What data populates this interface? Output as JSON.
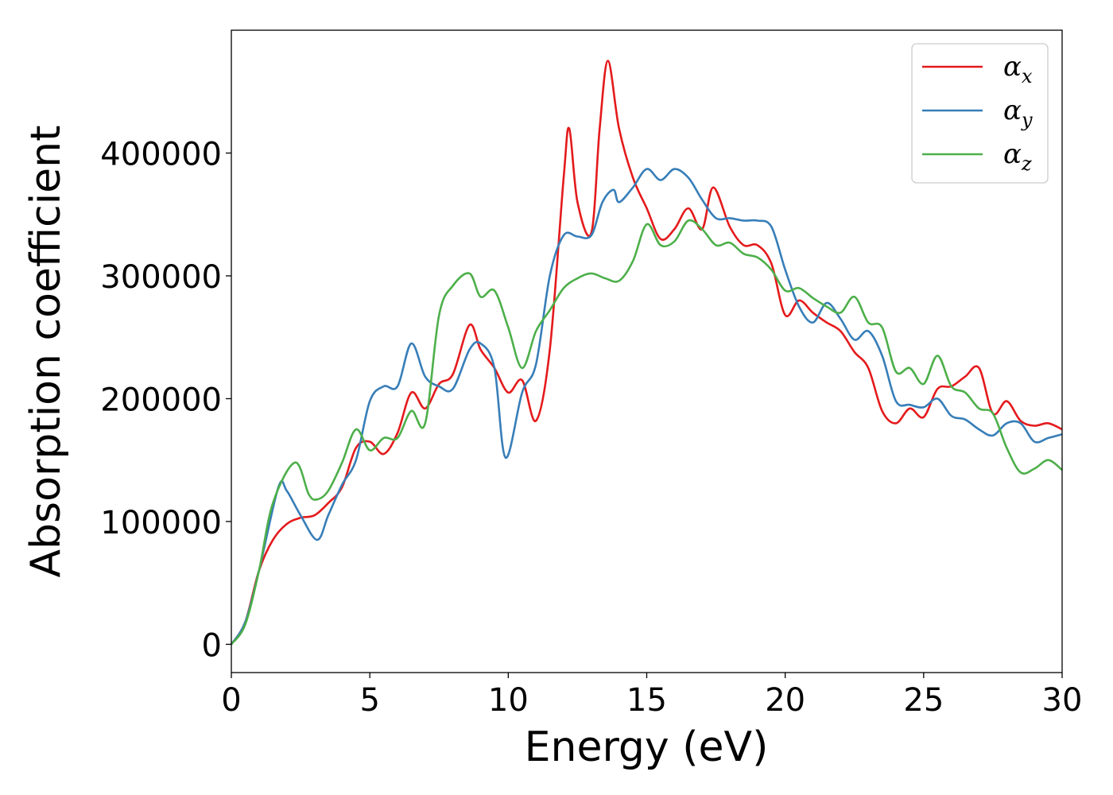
{
  "chart_data": {
    "type": "line",
    "xlabel": "Energy (eV)",
    "ylabel": "Absorption coefficient",
    "xlim": [
      0,
      30
    ],
    "ylim": [
      -23000,
      500000
    ],
    "xticks": [
      0,
      5,
      10,
      15,
      20,
      25,
      30
    ],
    "yticks": [
      0,
      100000,
      200000,
      300000,
      400000
    ],
    "legend_position": "top-right",
    "grid": false,
    "series": [
      {
        "name": "αx",
        "symbol": "α",
        "subscript": "x",
        "color": "#e41a1c",
        "x": [
          0,
          0.5,
          1.0,
          1.5,
          2.0,
          2.5,
          3.0,
          3.5,
          4.0,
          4.5,
          5.0,
          5.5,
          6.0,
          6.5,
          7.0,
          7.5,
          8.0,
          8.6,
          9.0,
          9.5,
          10.0,
          10.5,
          11.0,
          11.5,
          12.0,
          12.2,
          12.5,
          13.0,
          13.3,
          13.6,
          14.0,
          14.5,
          15.0,
          15.5,
          16.0,
          16.5,
          17.0,
          17.4,
          18.0,
          18.5,
          19.0,
          19.5,
          20.0,
          20.5,
          21.0,
          21.5,
          22.0,
          22.5,
          23.0,
          23.5,
          24.0,
          24.5,
          25.0,
          25.5,
          26.0,
          26.5,
          27.0,
          27.5,
          28.0,
          28.5,
          29.0,
          29.5,
          30.0
        ],
        "y": [
          0,
          18000,
          60000,
          85000,
          98000,
          103000,
          105000,
          115000,
          128000,
          160000,
          165000,
          155000,
          172000,
          205000,
          192000,
          212000,
          220000,
          260000,
          240000,
          225000,
          205000,
          215000,
          182000,
          240000,
          380000,
          420000,
          360000,
          335000,
          420000,
          475000,
          420000,
          380000,
          355000,
          330000,
          338000,
          355000,
          338000,
          372000,
          340000,
          325000,
          325000,
          310000,
          268000,
          280000,
          270000,
          262000,
          255000,
          238000,
          225000,
          190000,
          180000,
          192000,
          185000,
          208000,
          210000,
          218000,
          225000,
          188000,
          198000,
          182000,
          178000,
          180000,
          175000
        ]
      },
      {
        "name": "αy",
        "symbol": "α",
        "subscript": "y",
        "color": "#377eb8",
        "x": [
          0,
          0.5,
          1.0,
          1.7,
          2.0,
          2.5,
          3.1,
          3.5,
          4.0,
          4.5,
          5.0,
          5.5,
          6.0,
          6.5,
          7.0,
          7.5,
          8.0,
          8.6,
          9.0,
          9.5,
          9.9,
          10.5,
          11.0,
          11.5,
          12.0,
          12.5,
          13.0,
          13.4,
          13.8,
          14.0,
          14.5,
          15.0,
          15.5,
          16.0,
          16.5,
          17.0,
          17.5,
          18.0,
          18.5,
          19.0,
          19.5,
          20.0,
          20.5,
          21.0,
          21.5,
          22.0,
          22.5,
          23.0,
          23.5,
          24.0,
          24.5,
          25.0,
          25.5,
          26.0,
          26.5,
          27.0,
          27.5,
          28.0,
          28.5,
          29.0,
          29.5,
          30.0
        ],
        "y": [
          0,
          18000,
          60000,
          128000,
          125000,
          105000,
          85000,
          105000,
          130000,
          150000,
          198000,
          210000,
          210000,
          245000,
          218000,
          210000,
          208000,
          240000,
          245000,
          225000,
          152000,
          205000,
          228000,
          300000,
          333000,
          332000,
          333000,
          360000,
          370000,
          360000,
          372000,
          387000,
          378000,
          387000,
          380000,
          362000,
          347000,
          347000,
          345000,
          345000,
          340000,
          305000,
          275000,
          262000,
          278000,
          265000,
          248000,
          255000,
          235000,
          198000,
          195000,
          193000,
          200000,
          186000,
          183000,
          175000,
          170000,
          180000,
          180000,
          165000,
          168000,
          171000
        ]
      },
      {
        "name": "αz",
        "symbol": "α",
        "subscript": "z",
        "color": "#4daf4a",
        "x": [
          0,
          0.5,
          1.0,
          1.5,
          2.3,
          2.8,
          3.1,
          3.5,
          4.0,
          4.5,
          5.0,
          5.5,
          6.0,
          6.5,
          7.0,
          7.5,
          8.0,
          8.6,
          9.0,
          9.5,
          10.0,
          10.5,
          11.0,
          11.5,
          12.0,
          12.5,
          13.0,
          13.5,
          14.0,
          14.5,
          15.0,
          15.5,
          16.0,
          16.5,
          17.0,
          17.5,
          18.0,
          18.5,
          19.0,
          19.5,
          20.0,
          20.5,
          21.0,
          21.5,
          22.0,
          22.5,
          23.0,
          23.5,
          24.0,
          24.5,
          25.0,
          25.5,
          26.0,
          26.5,
          27.0,
          27.5,
          28.0,
          28.5,
          29.0,
          29.5,
          30.0
        ],
        "y": [
          0,
          16000,
          60000,
          115000,
          148000,
          122000,
          118000,
          125000,
          148000,
          175000,
          158000,
          168000,
          168000,
          190000,
          180000,
          268000,
          292000,
          302000,
          283000,
          288000,
          258000,
          225000,
          255000,
          272000,
          290000,
          298000,
          302000,
          298000,
          296000,
          312000,
          342000,
          325000,
          328000,
          345000,
          338000,
          325000,
          327000,
          318000,
          315000,
          305000,
          288000,
          290000,
          282000,
          275000,
          270000,
          283000,
          262000,
          258000,
          222000,
          225000,
          212000,
          235000,
          210000,
          205000,
          192000,
          188000,
          160000,
          140000,
          143000,
          150000,
          142000
        ]
      }
    ]
  }
}
